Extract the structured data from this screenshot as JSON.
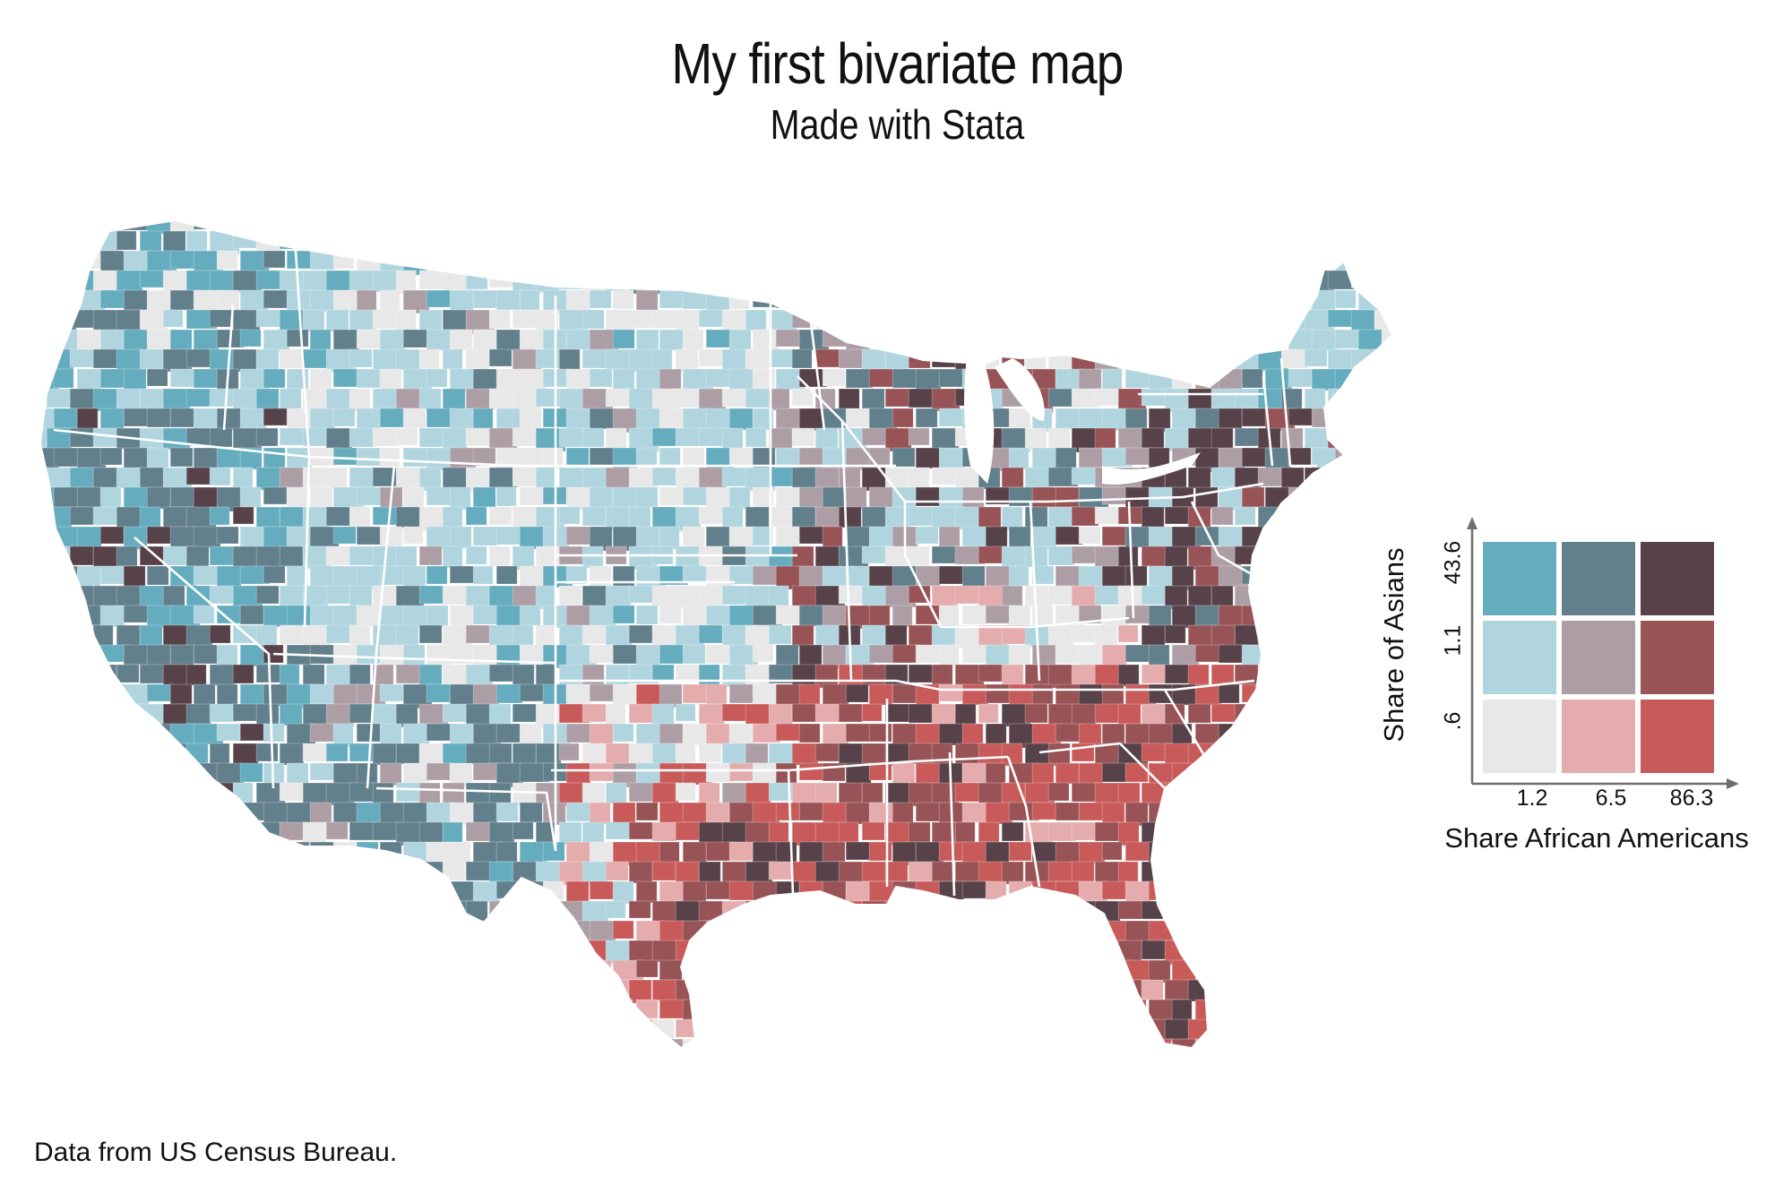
{
  "title": "My first bivariate map",
  "subtitle": "Made with Stata",
  "source_note": "Data from US Census Bureau.",
  "map": {
    "region": "Contiguous United States, county level",
    "legend": {
      "y_axis_label": "Share of Asians",
      "x_axis_label": "Share African Americans",
      "y_ticks": [
        ".6",
        "1.1",
        "43.6"
      ],
      "x_ticks": [
        "1.2",
        "6.5",
        "86.3"
      ],
      "grid_colors": [
        [
          "#e8e8e8",
          "#e4acac",
          "#c85a5a"
        ],
        [
          "#b0d5df",
          "#ad9ea5",
          "#985356"
        ],
        [
          "#64acbe",
          "#627f8c",
          "#574249"
        ]
      ]
    }
  }
}
